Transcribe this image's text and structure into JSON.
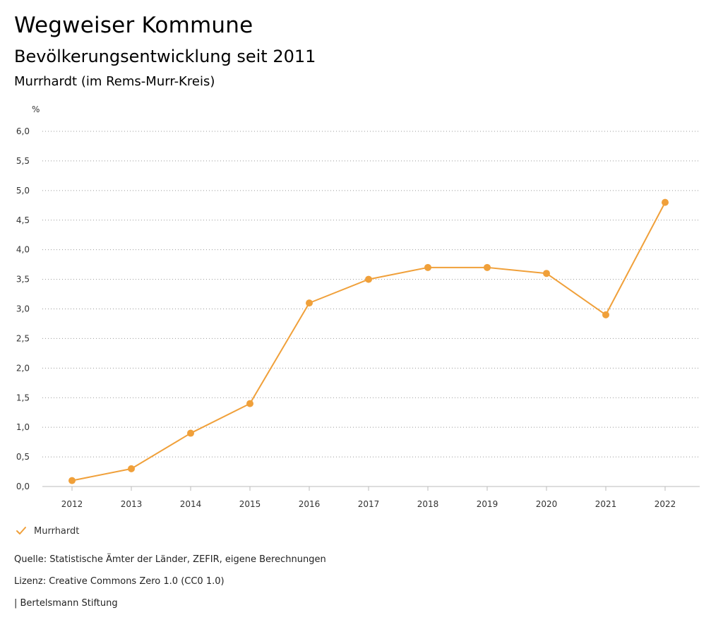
{
  "header": {
    "title": "Wegweiser Kommune",
    "subtitle": "Bevölkerungsentwicklung seit 2011",
    "region": "Murrhardt (im Rems-Murr-Kreis)"
  },
  "chart_data": {
    "type": "line",
    "title": "Bevölkerungsentwicklung seit 2011",
    "ylabel": "%",
    "xlabel": "",
    "ylim": [
      0,
      6
    ],
    "yticks": [
      0,
      0.5,
      1,
      1.5,
      2,
      2.5,
      3,
      3.5,
      4,
      4.5,
      5,
      5.5,
      6
    ],
    "ytick_labels": [
      "0,0",
      "0,5",
      "1,0",
      "1,5",
      "2,0",
      "2,5",
      "3,0",
      "3,5",
      "4,0",
      "4,5",
      "5,0",
      "5,5",
      "6,0"
    ],
    "categories": [
      "2012",
      "2013",
      "2014",
      "2015",
      "2016",
      "2017",
      "2018",
      "2019",
      "2020",
      "2021",
      "2022"
    ],
    "series": [
      {
        "name": "Murrhardt",
        "color": "#f0a03a",
        "values": [
          0.1,
          0.3,
          0.9,
          1.4,
          3.1,
          3.5,
          3.7,
          3.7,
          3.6,
          2.9,
          4.8
        ]
      }
    ],
    "grid": true,
    "legend": "bottom-left"
  },
  "legend": {
    "icon": "check-icon",
    "label": "Murrhardt"
  },
  "footer": {
    "source": "Quelle: Statistische Ämter der Länder, ZEFIR, eigene Berechnungen",
    "license": "Lizenz: Creative Commons Zero 1.0 (CC0 1.0)",
    "brand": "| Bertelsmann Stiftung"
  }
}
